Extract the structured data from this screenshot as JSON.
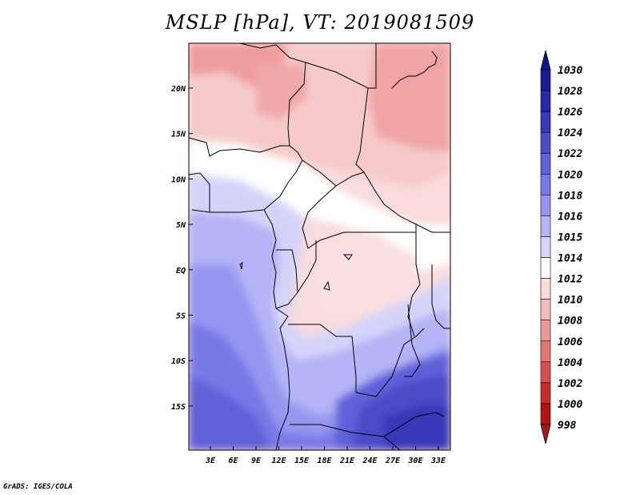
{
  "title": "MSLP [hPa], VT: 2019081509",
  "credit": "GrADS: IGES/COLA",
  "map": {
    "x_ticks": [
      "3E",
      "6E",
      "9E",
      "12E",
      "15E",
      "18E",
      "21E",
      "24E",
      "27E",
      "30E",
      "33E"
    ],
    "y_ticks": [
      "20N",
      "15N",
      "10N",
      "5N",
      "EQ",
      "5S",
      "10S",
      "15S"
    ]
  },
  "colorbar": {
    "levels": [
      "1030",
      "1028",
      "1026",
      "1024",
      "1022",
      "1020",
      "1018",
      "1016",
      "1015",
      "1014",
      "1012",
      "1010",
      "1008",
      "1006",
      "1004",
      "1002",
      "1000",
      "998"
    ],
    "colors": [
      "#14148a",
      "#1c1c98",
      "#2828a8",
      "#3838b8",
      "#4c4cc8",
      "#6060d8",
      "#7878e6",
      "#9696f0",
      "#b4b4f6",
      "#d4d4fa",
      "#ffffff",
      "#fadcdc",
      "#f4bcbc",
      "#ea9a9a",
      "#e07676",
      "#d65050",
      "#c82c2c",
      "#b01414",
      "#960000"
    ],
    "top_color": "#14148a",
    "bottom_color": "#a81a1a"
  }
}
